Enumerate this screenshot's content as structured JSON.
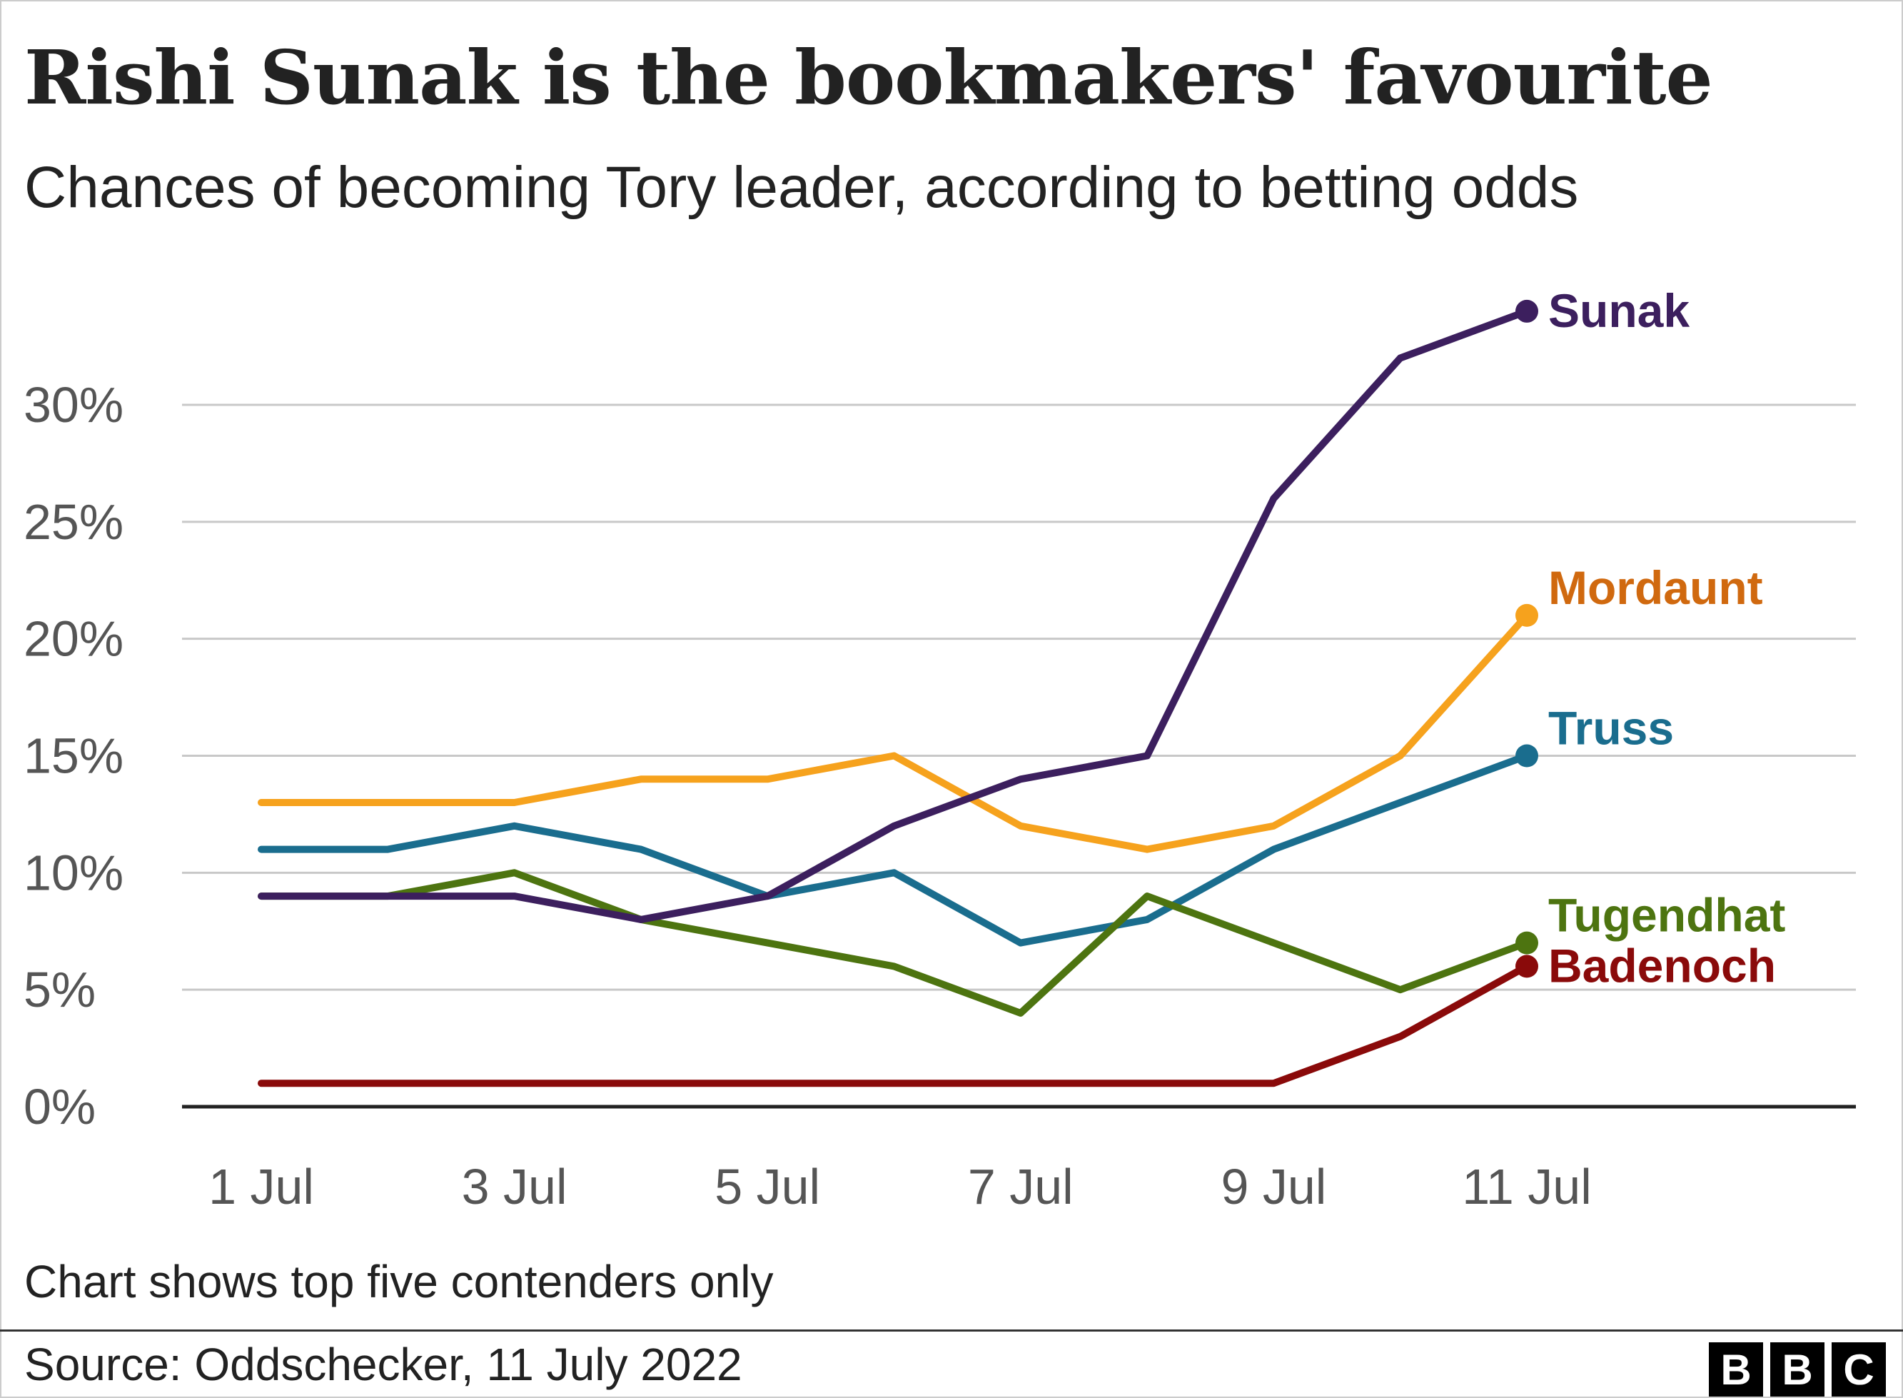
{
  "title": "Rishi Sunak is the bookmakers' favourite",
  "subtitle": "Chances of becoming Tory leader, according to betting odds",
  "note": "Chart shows top five contenders only",
  "source": "Source: Oddschecker, 11 July 2022",
  "logo": {
    "letters": [
      "B",
      "B",
      "C"
    ]
  },
  "chart_data": {
    "type": "line",
    "title": "Rishi Sunak is the bookmakers' favourite",
    "subtitle": "Chances of becoming Tory leader, according to betting odds",
    "xlabel": "",
    "ylabel": "",
    "x": [
      "1 Jul",
      "2 Jul",
      "3 Jul",
      "4 Jul",
      "5 Jul",
      "6 Jul",
      "7 Jul",
      "8 Jul",
      "9 Jul",
      "10 Jul",
      "11 Jul"
    ],
    "x_tick_labels": [
      "1 Jul",
      "3 Jul",
      "5 Jul",
      "7 Jul",
      "9 Jul",
      "11 Jul"
    ],
    "ylim": [
      0,
      30
    ],
    "y_ticks": [
      0,
      5,
      10,
      15,
      20,
      25,
      30
    ],
    "y_tick_labels": [
      "0%",
      "5%",
      "10%",
      "15%",
      "20%",
      "25%",
      "30%"
    ],
    "grid": true,
    "legend": "direct labels at line ends",
    "series": [
      {
        "name": "Sunak",
        "color": "#3c1f5e",
        "label_color": "#3c1f5e",
        "values": [
          9,
          9,
          9,
          8,
          9,
          12,
          14,
          15,
          26,
          32,
          34
        ]
      },
      {
        "name": "Mordaunt",
        "color": "#f6a21d",
        "label_color": "#d0690f",
        "values": [
          13,
          13,
          13,
          14,
          14,
          15,
          12,
          11,
          12,
          15,
          21
        ]
      },
      {
        "name": "Truss",
        "color": "#1a6d8e",
        "label_color": "#1a6d8e",
        "values": [
          11,
          11,
          12,
          11,
          9,
          10,
          7,
          8,
          11,
          13,
          15
        ]
      },
      {
        "name": "Tugendhat",
        "color": "#4d7410",
        "label_color": "#4d7410",
        "values": [
          9,
          9,
          10,
          8,
          7,
          6,
          4,
          9,
          7,
          5,
          7
        ]
      },
      {
        "name": "Badenoch",
        "color": "#8a0a0a",
        "label_color": "#8a0a0a",
        "values": [
          1,
          1,
          1,
          1,
          1,
          1,
          1,
          1,
          1,
          3,
          6
        ]
      }
    ]
  }
}
